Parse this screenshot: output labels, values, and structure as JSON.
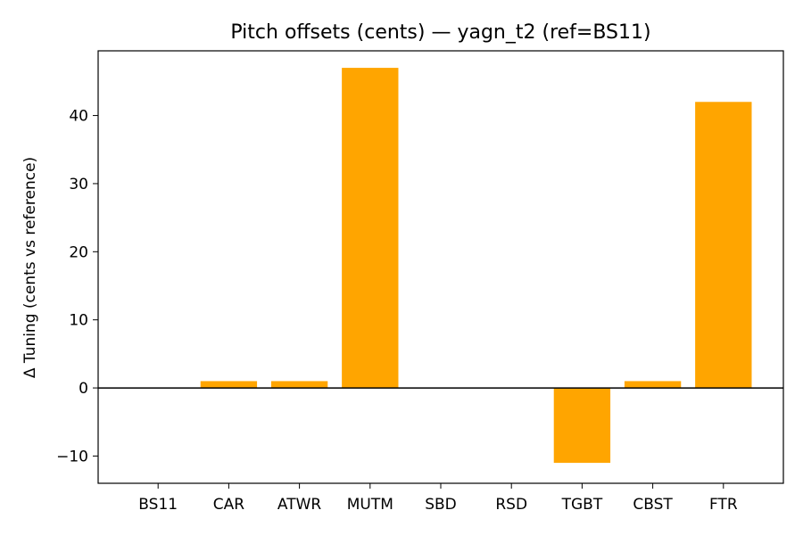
{
  "chart_data": {
    "type": "bar",
    "title": "Pitch offsets (cents) — yagn_t2 (ref=BS11)",
    "xlabel": "",
    "ylabel": "Δ Tuning (cents vs reference)",
    "categories": [
      "BS11",
      "CAR",
      "ATWR",
      "MUTM",
      "SBD",
      "RSD",
      "TGBT",
      "CBST",
      "FTR"
    ],
    "values": [
      0,
      1,
      1,
      47,
      0,
      0,
      -11,
      1,
      42
    ],
    "ylim": [
      -14,
      49.5
    ],
    "yticks": [
      -10,
      0,
      10,
      20,
      30,
      40
    ],
    "ytick_labels": [
      "−10",
      "0",
      "10",
      "20",
      "30",
      "40"
    ],
    "bar_color": "#ffa500",
    "zero_line_color": "#000000",
    "grid": false,
    "legend": "none"
  }
}
